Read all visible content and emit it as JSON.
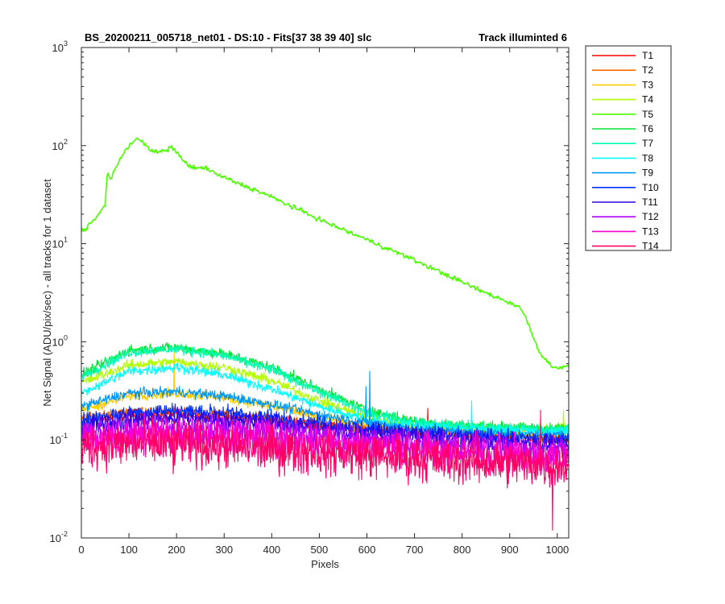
{
  "chart_data": {
    "type": "line",
    "title": "BS_20200211_005718_net01 - DS:10 - Fits[37  38  39  40]   slc",
    "subtitle": "Track illuminted 6",
    "xlabel": "Pixels",
    "ylabel": "Net Signal (ADU/pix/sec) - all tracks for 1 dataset",
    "xlim": [
      0,
      1024
    ],
    "ylim": [
      0.01,
      1000
    ],
    "yscale": "log",
    "xticks": [
      0,
      100,
      200,
      300,
      400,
      500,
      600,
      700,
      800,
      900,
      1000
    ],
    "xtick_labels": [
      "0",
      "100",
      "200",
      "300",
      "400",
      "500",
      "600",
      "700",
      "800",
      "900",
      "1000"
    ],
    "yticks": [
      {
        "value": 0.01,
        "mantissa": "10",
        "exponent": "-2"
      },
      {
        "value": 0.1,
        "mantissa": "10",
        "exponent": "-1"
      },
      {
        "value": 1,
        "mantissa": "10",
        "exponent": "0"
      },
      {
        "value": 10,
        "mantissa": "10",
        "exponent": "1"
      },
      {
        "value": 100,
        "mantissa": "10",
        "exponent": "2"
      },
      {
        "value": 1000,
        "mantissa": "10",
        "exponent": "3"
      }
    ],
    "grid": false,
    "legend_position": "outside-right",
    "series": [
      {
        "name": "T1",
        "color": "#ff0000",
        "x": [
          0,
          100,
          200,
          300,
          400,
          500,
          600,
          700,
          800,
          900,
          1024
        ],
        "y": [
          0.16,
          0.18,
          0.185,
          0.17,
          0.16,
          0.14,
          0.13,
          0.12,
          0.115,
          0.11,
          0.1
        ],
        "spikes": [
          {
            "x": 728,
            "y": 0.21
          }
        ]
      },
      {
        "name": "T2",
        "color": "#ff6a00",
        "x": [
          0,
          100,
          200,
          300,
          400,
          500,
          600,
          700,
          800,
          900,
          1024
        ],
        "y": [
          0.17,
          0.19,
          0.19,
          0.18,
          0.165,
          0.145,
          0.13,
          0.12,
          0.115,
          0.11,
          0.1
        ]
      },
      {
        "name": "T3",
        "color": "#ffcc00",
        "x": [
          0,
          100,
          200,
          300,
          400,
          500,
          600,
          700,
          800,
          900,
          1024
        ],
        "y": [
          0.2,
          0.28,
          0.3,
          0.27,
          0.22,
          0.17,
          0.14,
          0.125,
          0.12,
          0.115,
          0.11
        ],
        "spikes": [
          {
            "x": 195,
            "y": 0.85
          }
        ]
      },
      {
        "name": "T4",
        "color": "#b2ff00",
        "x": [
          0,
          100,
          200,
          300,
          400,
          500,
          600,
          700,
          800,
          900,
          1024
        ],
        "y": [
          0.38,
          0.58,
          0.63,
          0.55,
          0.4,
          0.25,
          0.17,
          0.14,
          0.13,
          0.13,
          0.13
        ],
        "spikes": [
          {
            "x": 1013,
            "y": 0.2
          }
        ]
      },
      {
        "name": "T5",
        "color": "#4cff00",
        "x": [
          0,
          30,
          50,
          55,
          62,
          70,
          78,
          85,
          92,
          100,
          110,
          120,
          130,
          145,
          160,
          180,
          190,
          200,
          215,
          240,
          260,
          280,
          320,
          380,
          450,
          520,
          600,
          680,
          760,
          840,
          900,
          920,
          935,
          950,
          965,
          985,
          1000,
          1024
        ],
        "y": [
          13,
          18,
          25,
          55,
          45,
          58,
          65,
          78,
          90,
          100,
          112,
          120,
          105,
          90,
          85,
          90,
          95,
          88,
          68,
          58,
          60,
          52,
          43,
          33,
          23,
          16,
          11,
          7.5,
          5,
          3.3,
          2.5,
          2.3,
          1.7,
          1.1,
          0.75,
          0.58,
          0.55,
          0.55
        ]
      },
      {
        "name": "T6",
        "color": "#00e633",
        "x": [
          0,
          100,
          200,
          300,
          400,
          500,
          600,
          700,
          800,
          900,
          1024
        ],
        "y": [
          0.46,
          0.82,
          0.88,
          0.75,
          0.55,
          0.33,
          0.2,
          0.155,
          0.14,
          0.135,
          0.13
        ]
      },
      {
        "name": "T7",
        "color": "#00ffb2",
        "x": [
          0,
          100,
          200,
          300,
          400,
          500,
          600,
          700,
          800,
          900,
          1024
        ],
        "y": [
          0.44,
          0.78,
          0.85,
          0.72,
          0.52,
          0.31,
          0.19,
          0.15,
          0.14,
          0.13,
          0.125
        ]
      },
      {
        "name": "T8",
        "color": "#00ffff",
        "x": [
          0,
          100,
          200,
          300,
          400,
          500,
          600,
          700,
          800,
          900,
          1024
        ],
        "y": [
          0.3,
          0.5,
          0.55,
          0.46,
          0.33,
          0.22,
          0.16,
          0.14,
          0.13,
          0.125,
          0.12
        ],
        "spikes": [
          {
            "x": 820,
            "y": 0.25
          }
        ]
      },
      {
        "name": "T9",
        "color": "#0099ff",
        "x": [
          0,
          100,
          200,
          300,
          400,
          500,
          600,
          700,
          800,
          900,
          1024
        ],
        "y": [
          0.22,
          0.3,
          0.31,
          0.28,
          0.23,
          0.18,
          0.15,
          0.13,
          0.12,
          0.115,
          0.11
        ],
        "spikes": [
          {
            "x": 598,
            "y": 0.35
          },
          {
            "x": 606,
            "y": 0.5
          }
        ]
      },
      {
        "name": "T10",
        "color": "#0033ff",
        "x": [
          0,
          100,
          200,
          300,
          400,
          500,
          600,
          700,
          800,
          900,
          1024
        ],
        "y": [
          0.16,
          0.19,
          0.2,
          0.19,
          0.17,
          0.15,
          0.13,
          0.12,
          0.11,
          0.105,
          0.1
        ]
      },
      {
        "name": "T11",
        "color": "#3300e6",
        "x": [
          0,
          100,
          200,
          300,
          400,
          500,
          600,
          700,
          800,
          900,
          1024
        ],
        "y": [
          0.14,
          0.16,
          0.165,
          0.16,
          0.15,
          0.13,
          0.12,
          0.11,
          0.1,
          0.095,
          0.09
        ]
      },
      {
        "name": "T12",
        "color": "#b200ff",
        "x": [
          0,
          100,
          200,
          300,
          400,
          500,
          600,
          700,
          800,
          900,
          1024
        ],
        "y": [
          0.12,
          0.13,
          0.13,
          0.125,
          0.12,
          0.11,
          0.1,
          0.09,
          0.085,
          0.08,
          0.075
        ]
      },
      {
        "name": "T13",
        "color": "#ff00cc",
        "x": [
          0,
          100,
          200,
          300,
          400,
          500,
          600,
          700,
          800,
          900,
          1024
        ],
        "y": [
          0.1,
          0.11,
          0.11,
          0.105,
          0.1,
          0.09,
          0.085,
          0.08,
          0.075,
          0.07,
          0.065
        ]
      },
      {
        "name": "T14",
        "color": "#ff0066",
        "x": [
          0,
          100,
          200,
          300,
          400,
          500,
          600,
          700,
          800,
          900,
          1024
        ],
        "y": [
          0.085,
          0.09,
          0.09,
          0.085,
          0.08,
          0.075,
          0.07,
          0.065,
          0.06,
          0.058,
          0.055
        ],
        "spikes": [
          {
            "x": 193,
            "y": 0.045
          },
          {
            "x": 965,
            "y": 0.2
          },
          {
            "x": 990,
            "y": 0.012
          }
        ]
      }
    ]
  }
}
